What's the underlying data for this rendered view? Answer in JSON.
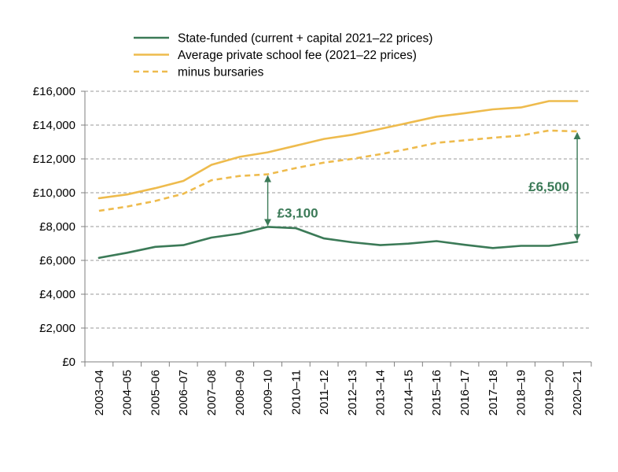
{
  "chart_data": {
    "type": "line",
    "title": "",
    "xlabel": "",
    "ylabel": "",
    "ylim": [
      0,
      16000
    ],
    "yticks": [
      0,
      2000,
      4000,
      6000,
      8000,
      10000,
      12000,
      14000,
      16000
    ],
    "ytick_labels": [
      "£0",
      "£2,000",
      "£4,000",
      "£6,000",
      "£8,000",
      "£10,000",
      "£12,000",
      "£14,000",
      "£16,000"
    ],
    "grid": "horizontal dashed",
    "legend_position": "top",
    "categories": [
      "2003–04",
      "2004–05",
      "2005–06",
      "2006–07",
      "2007–08",
      "2008–09",
      "2009–10",
      "2010–11",
      "2011–12",
      "2012–13",
      "2013–14",
      "2014–15",
      "2015–16",
      "2016–17",
      "2017–18",
      "2018–19",
      "2019–20",
      "2020–21"
    ],
    "series": [
      {
        "name": "State-funded (current + capital 2021–22 prices)",
        "color": "#3b7a57",
        "style": "solid",
        "values": [
          6150,
          6450,
          6800,
          6900,
          7350,
          7580,
          7980,
          7900,
          7300,
          7070,
          6900,
          6990,
          7140,
          6920,
          6730,
          6860,
          6860,
          7100
        ]
      },
      {
        "name": "Average private school fee (2021–22 prices)",
        "color": "#eebb4d",
        "style": "solid",
        "values": [
          9680,
          9900,
          10270,
          10700,
          11650,
          12120,
          12390,
          12780,
          13180,
          13430,
          13770,
          14130,
          14500,
          14700,
          14930,
          15040,
          15420,
          15420
        ]
      },
      {
        "name": "minus bursaries",
        "color": "#eebb4d",
        "style": "dashed",
        "values": [
          8930,
          9180,
          9510,
          9940,
          10740,
          10990,
          11090,
          11460,
          11780,
          12000,
          12280,
          12590,
          12950,
          13100,
          13250,
          13380,
          13680,
          13630
        ]
      }
    ],
    "annotations": [
      {
        "label": "£3,100",
        "category": "2009–10",
        "from": 7980,
        "to": 11090,
        "color": "#3b7a57"
      },
      {
        "label": "£6,500",
        "category": "2020–21",
        "from": 7100,
        "to": 13630,
        "color": "#3b7a57"
      }
    ]
  }
}
